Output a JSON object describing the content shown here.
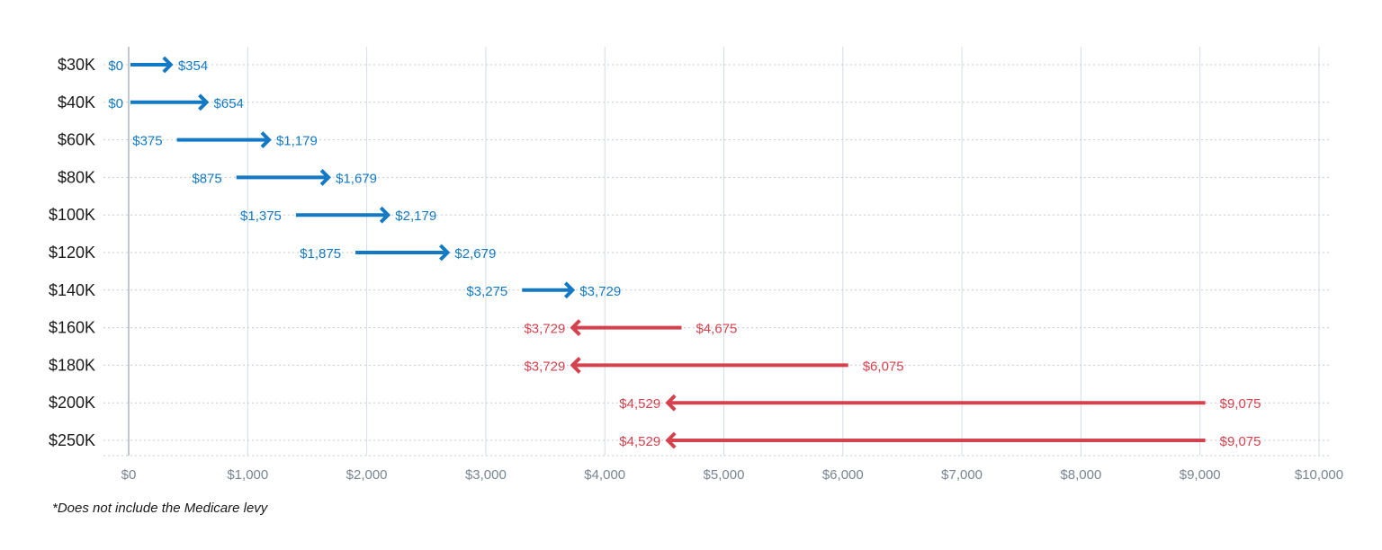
{
  "chart_data": {
    "type": "arrow",
    "title": "",
    "xlabel": "",
    "ylabel": "",
    "xlim": [
      0,
      10000
    ],
    "x_ticks": [
      0,
      1000,
      2000,
      3000,
      4000,
      5000,
      6000,
      7000,
      8000,
      9000,
      10000
    ],
    "x_tick_labels": [
      "$0",
      "$1,000",
      "$2,000",
      "$3,000",
      "$4,000",
      "$5,000",
      "$6,000",
      "$7,000",
      "$8,000",
      "$9,000",
      "$10,000"
    ],
    "grid": true,
    "categories": [
      "$30K",
      "$40K",
      "$60K",
      "$80K",
      "$100K",
      "$120K",
      "$140K",
      "$160K",
      "$180K",
      "$200K",
      "$250K"
    ],
    "rows": [
      {
        "from": 0,
        "to": 354,
        "from_label": "$0",
        "to_label": "$354"
      },
      {
        "from": 0,
        "to": 654,
        "from_label": "$0",
        "to_label": "$654"
      },
      {
        "from": 375,
        "to": 1179,
        "from_label": "$375",
        "to_label": "$1,179"
      },
      {
        "from": 875,
        "to": 1679,
        "from_label": "$875",
        "to_label": "$1,679"
      },
      {
        "from": 1375,
        "to": 2179,
        "from_label": "$1,375",
        "to_label": "$2,179"
      },
      {
        "from": 1875,
        "to": 2679,
        "from_label": "$1,875",
        "to_label": "$2,679"
      },
      {
        "from": 3275,
        "to": 3729,
        "from_label": "$3,275",
        "to_label": "$3,729"
      },
      {
        "from": 4675,
        "to": 3729,
        "from_label": "$4,675",
        "to_label": "$3,729"
      },
      {
        "from": 6075,
        "to": 3729,
        "from_label": "$6,075",
        "to_label": "$3,729"
      },
      {
        "from": 9075,
        "to": 4529,
        "from_label": "$9,075",
        "to_label": "$4,529"
      },
      {
        "from": 9075,
        "to": 4529,
        "from_label": "$9,075",
        "to_label": "$4,529"
      }
    ],
    "colors": {
      "increase": "#1479c4",
      "decrease": "#d3424d",
      "grid": "#d4dce6",
      "axis": "#9aa3ad"
    }
  },
  "footnote": "*Does not include the Medicare levy"
}
